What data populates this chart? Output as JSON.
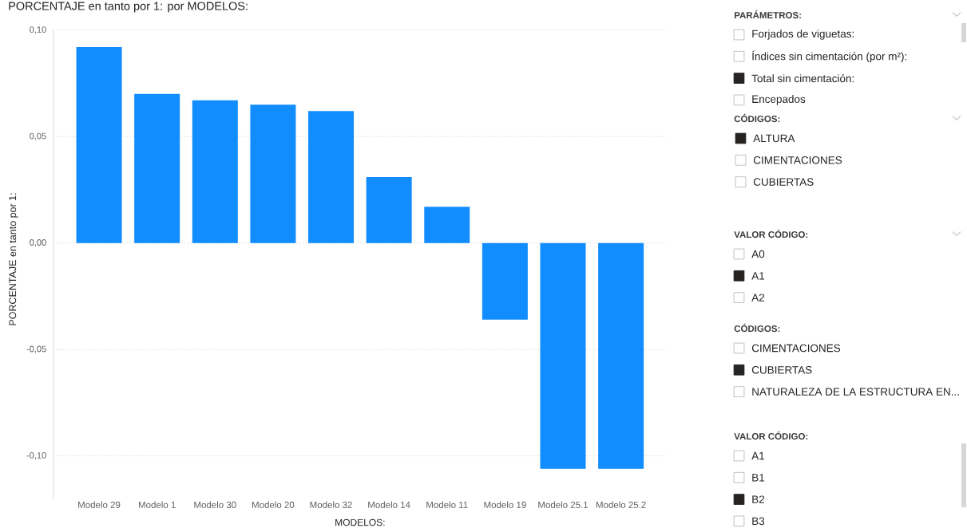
{
  "chart_data": [
    {
      "type": "bar",
      "title": "PORCENTAJE en tanto por 1: por MODELOS:",
      "xlabel": "MODELOS:",
      "ylabel": "PORCENTAJE en tanto por 1:",
      "categories": [
        "Modelo 29",
        "Modelo 1",
        "Modelo 30",
        "Modelo 20",
        "Modelo 32",
        "Modelo 14",
        "Modelo 11",
        "Modelo 19",
        "Modelo 25.1",
        "Modelo 25.2"
      ],
      "values": [
        0.092,
        0.07,
        0.067,
        0.065,
        0.062,
        0.031,
        0.017,
        -0.036,
        -0.106,
        -0.106
      ],
      "color": "#118dff",
      "ylim": [
        -0.12,
        0.1
      ],
      "yticks": [
        {
          "value": -0.1,
          "label": "-0,10"
        },
        {
          "value": -0.05,
          "label": "-0,05"
        },
        {
          "value": 0,
          "label": "0,00"
        },
        {
          "value": 0.05,
          "label": "0,05"
        },
        {
          "value": 0.1,
          "label": "0,10"
        }
      ],
      "grid": "y"
    },
    {
      "type": "other",
      "title": "PARÁMETROS:",
      "annotations": [
        "Forjados de viguetas:",
        "Índices sin cimentación (por m²):",
        "Total sin cimentación:",
        "Encepados"
      ],
      "colors": [
        "#ffffff",
        "#ffffff",
        "#252423",
        "#ffffff"
      ]
    },
    {
      "type": "other",
      "title": "CÓDIGOS:",
      "annotations": [
        "ALTURA",
        "CIMENTACIONES",
        "CUBIERTAS"
      ],
      "colors": [
        "#252423",
        "#ffffff",
        "#ffffff"
      ]
    },
    {
      "type": "other",
      "title": "VALOR CÓDIGO:",
      "annotations": [
        "A0",
        "A1",
        "A2"
      ],
      "colors": [
        "#ffffff",
        "#252423",
        "#ffffff"
      ]
    },
    {
      "type": "other",
      "title": "CÓDIGOS:",
      "annotations": [
        "CIMENTACIONES",
        "CUBIERTAS",
        "NATURALEZA DE LA ESTRUCTURA EN..."
      ],
      "colors": [
        "#ffffff",
        "#252423",
        "#ffffff"
      ]
    },
    {
      "type": "other",
      "title": "VALOR CÓDIGO:",
      "annotations": [
        "A1",
        "B1",
        "B2",
        "B3"
      ],
      "colors": [
        "#ffffff",
        "#ffffff",
        "#252423",
        "#ffffff"
      ]
    }
  ]
}
